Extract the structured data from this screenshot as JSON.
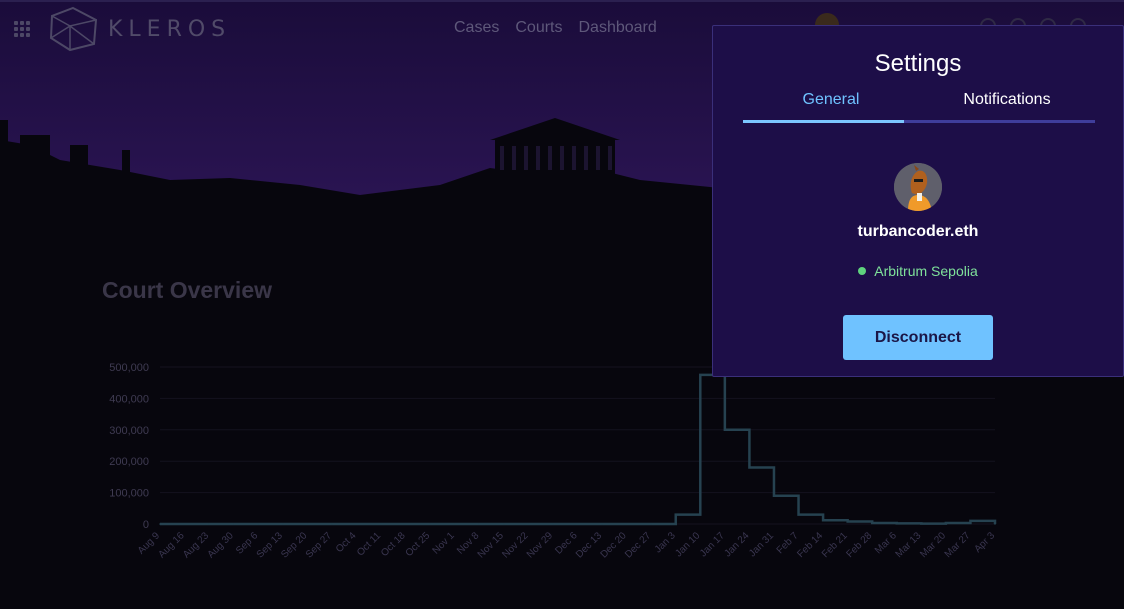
{
  "header": {
    "logo_text": "KLEROS",
    "nav": [
      "Cases",
      "Courts",
      "Dashboard"
    ]
  },
  "main": {
    "title": "Court Overview"
  },
  "settings": {
    "title": "Settings",
    "tabs": [
      {
        "label": "General",
        "active": true
      },
      {
        "label": "Notifications",
        "active": false
      }
    ],
    "ens_name": "turbancoder.eth",
    "network": "Arbitrum Sepolia",
    "disconnect_label": "Disconnect"
  },
  "colors": {
    "accent": "#6fc2ff",
    "panel_bg": "#1d0e48",
    "network_ok": "#5fd37e",
    "line": "#264250"
  },
  "chart_data": {
    "type": "line",
    "title": "",
    "xlabel": "",
    "ylabel": "",
    "ylim": [
      0,
      500000
    ],
    "yticks": [
      "500,000",
      "400,000",
      "300,000",
      "200,000",
      "100,000",
      "0"
    ],
    "categories": [
      "Aug 9",
      "Aug 16",
      "Aug 23",
      "Aug 30",
      "Sep 6",
      "Sep 13",
      "Sep 20",
      "Sep 27",
      "Oct 4",
      "Oct 11",
      "Oct 18",
      "Oct 25",
      "Nov 1",
      "Nov 8",
      "Nov 15",
      "Nov 22",
      "Nov 29",
      "Dec 6",
      "Dec 13",
      "Dec 20",
      "Dec 27",
      "Jan 3",
      "Jan 10",
      "Jan 17",
      "Jan 24",
      "Jan 31",
      "Feb 7",
      "Feb 14",
      "Feb 21",
      "Feb 28",
      "Mar 6",
      "Mar 13",
      "Mar 20",
      "Mar 27",
      "Apr 3"
    ],
    "series": [
      {
        "values": [
          0,
          0,
          0,
          0,
          0,
          0,
          0,
          0,
          0,
          0,
          0,
          0,
          0,
          0,
          0,
          0,
          0,
          0,
          0,
          0,
          0,
          30000,
          475000,
          300000,
          180000,
          90000,
          30000,
          12000,
          8000,
          3000,
          2000,
          1000,
          3000,
          10000,
          0
        ]
      }
    ]
  }
}
